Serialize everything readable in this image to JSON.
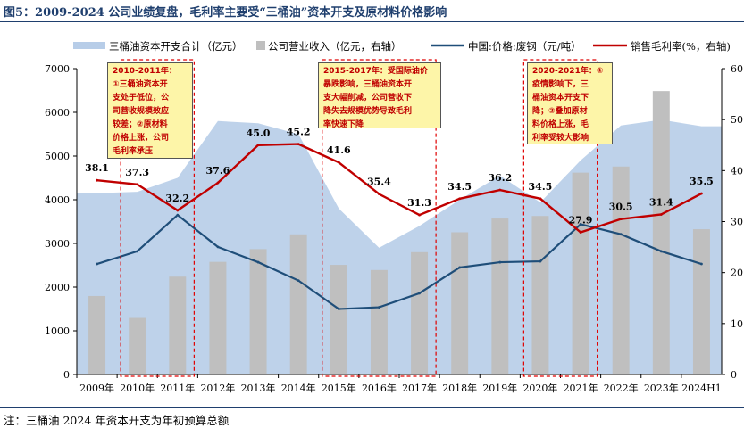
{
  "header": {
    "title": "图5：2009-2024 公司业绩复盘，毛利率主要受“三桶油”资本开支及原材料价格影响"
  },
  "note": "注：三桶油 2024 年资本开支为年初预算总额",
  "legend": {
    "capex": "三桶油资本开支合计（亿元）",
    "revenue": "公司营业收入（亿元，右轴）",
    "price": "中国:价格:废钢（元/吨）",
    "margin": "销售毛利率(%，右轴)"
  },
  "annotations": [
    {
      "title": "2010-2011年：",
      "lines": [
        "①三桶油资本开",
        "支处于低位，公",
        "司营收规模效应",
        "较差；②原材料",
        "价格上涨，公司",
        "毛利率承压"
      ]
    },
    {
      "title": "2015-2017年：受国际油价",
      "lines": [
        "暴跌影响，三桶油资本开",
        "支大幅削减，公司营收下",
        "降失去规模优势导致毛利",
        "率快速下降"
      ]
    },
    {
      "title": "2020-2021年：①",
      "lines": [
        "疫情影响下，三",
        "桶油资本开支下",
        "降；②叠加原材",
        "料价格上涨，毛",
        "利率受较大影响"
      ]
    }
  ],
  "colors": {
    "capex_area": "#b7cde8",
    "revenue_bar": "#bfbfbf",
    "price_line": "#1f4e79",
    "margin_line": "#c00000",
    "title": "#1f3f6e"
  },
  "chart_data": {
    "type": "combo",
    "categories": [
      "2009年",
      "2010年",
      "2011年",
      "2012年",
      "2013年",
      "2014年",
      "2015年",
      "2016年",
      "2017年",
      "2018年",
      "2019年",
      "2020年",
      "2021年",
      "2022年",
      "2023年",
      "2024H1"
    ],
    "left_axis": {
      "min": 0,
      "max": 7000,
      "ticks": [
        "0",
        "1000",
        "2000",
        "3000",
        "4000",
        "5000",
        "6000",
        "7000"
      ]
    },
    "right_axis": {
      "min": 0,
      "max": 60,
      "ticks": [
        "0",
        "10",
        "20",
        "30",
        "40",
        "50",
        "60"
      ]
    },
    "series": [
      {
        "name": "三桶油资本开支合计（亿元）",
        "type": "area",
        "axis": "left",
        "values": [
          4150,
          4180,
          4500,
          5800,
          5750,
          5500,
          3800,
          2900,
          3400,
          4000,
          4550,
          3940,
          4900,
          5700,
          5830,
          5680
        ]
      },
      {
        "name": "公司营业收入（亿元，右轴）",
        "type": "bar",
        "axis": "right",
        "values": [
          15.4,
          11.1,
          19.2,
          22.1,
          24.6,
          27.5,
          21.5,
          20.5,
          24.0,
          27.9,
          30.6,
          31.1,
          39.6,
          40.8,
          55.6,
          28.5
        ]
      },
      {
        "name": "中国:价格:废钢（元/吨）",
        "type": "line",
        "axis": "left",
        "values": [
          2530,
          2820,
          3650,
          2920,
          2570,
          2150,
          1500,
          1540,
          1860,
          2450,
          2570,
          2590,
          3440,
          3210,
          2820,
          2530
        ]
      },
      {
        "name": "销售毛利率(%，右轴)",
        "type": "line",
        "axis": "right",
        "values": [
          38.1,
          37.3,
          32.2,
          37.6,
          45.0,
          45.2,
          41.6,
          35.4,
          31.3,
          34.5,
          36.2,
          34.5,
          27.9,
          30.5,
          31.4,
          35.5
        ],
        "labels": [
          "38.1",
          "37.3",
          "32.2",
          "37.6",
          "45.0",
          "45.2",
          "41.6",
          "35.4",
          "31.3",
          "34.5",
          "36.2",
          "34.5",
          "27.9",
          "30.5",
          "31.4",
          "35.5"
        ]
      }
    ],
    "highlight_periods": [
      [
        "2010年",
        "2011年"
      ],
      [
        "2015年",
        "2017年"
      ],
      [
        "2020年",
        "2021年"
      ]
    ]
  }
}
